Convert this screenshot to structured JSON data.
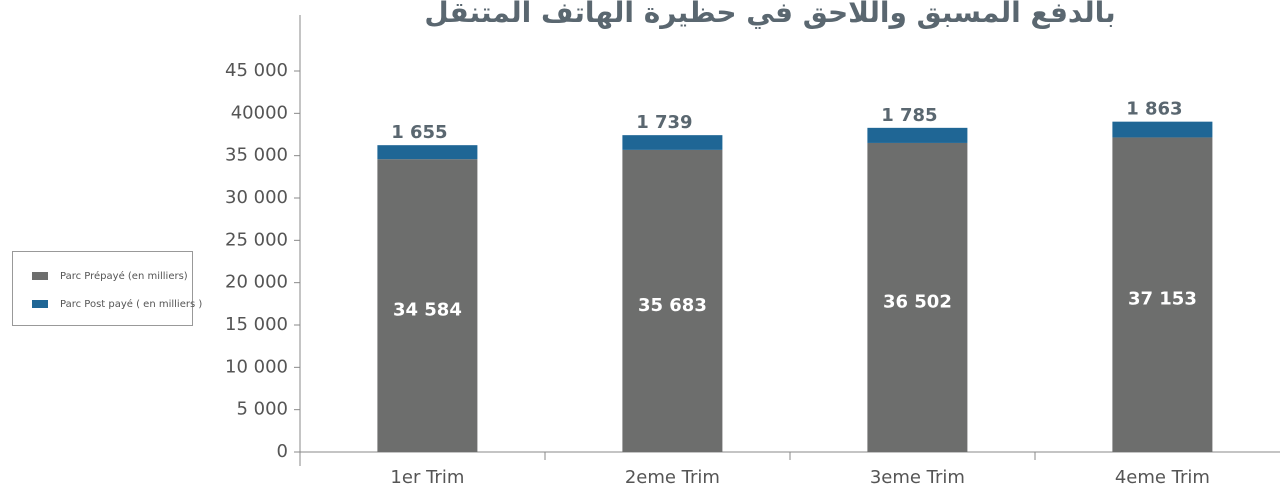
{
  "chart_data": {
    "type": "stacked_bar",
    "title": "بالدفع المسبق واللاحق في حظيرة الهاتف المتنقل",
    "categories": [
      "1er Trim",
      "2eme Trim",
      "3eme Trim",
      "4eme Trim"
    ],
    "series": [
      {
        "name": "Parc Prépayé (en milliers)",
        "color": "#6d6e6d",
        "values": [
          34584,
          35683,
          36502,
          37153
        ],
        "value_labels": [
          "34 584",
          "35 683",
          "36 502",
          "37 153"
        ]
      },
      {
        "name": "Parc Post payé ( en milliers )",
        "color": "#1f6695",
        "values": [
          1655,
          1739,
          1785,
          1863
        ],
        "value_labels": [
          "1 655",
          "1 739",
          "1 785",
          "1 863"
        ]
      }
    ],
    "ylim": [
      0,
      45000
    ],
    "yticks": [
      0,
      {
        "value": 5000,
        "label": "5 000"
      },
      {
        "value": 10000,
        "label": "10 000"
      },
      {
        "value": 15000,
        "label": "15 000"
      },
      {
        "value": 20000,
        "label": "20 000"
      },
      {
        "value": 25000,
        "label": "25 000"
      },
      {
        "value": 30000,
        "label": "30 000"
      },
      {
        "value": 35000,
        "label": "35 000"
      },
      {
        "value": 40000,
        "label": "40000"
      },
      {
        "value": 45000,
        "label": "45 000"
      }
    ],
    "legend": "left"
  }
}
